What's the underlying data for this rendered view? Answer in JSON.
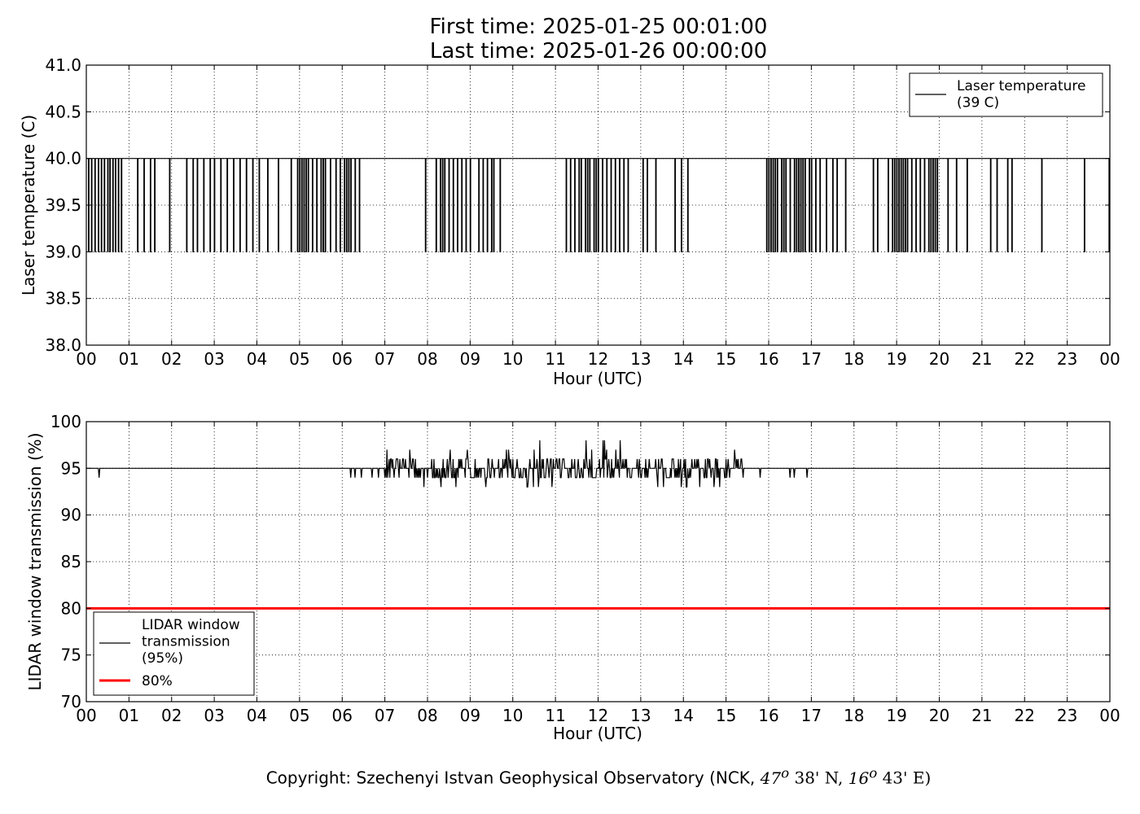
{
  "title": {
    "line1": "First time: 2025-01-25 00:01:00",
    "line2": "Last time: 2025-01-26 00:00:00"
  },
  "copyright": {
    "prefix": "Copyright: Szechenyi Istvan Geophysical Observatory (NCK,",
    "lat_deg": "47",
    "lat_min": "38' N,",
    "lon_deg": "16",
    "lon_min": "43' E)",
    "degree_mark": "o"
  },
  "colors": {
    "laser_line": "#000000",
    "transmission_line": "#000000",
    "threshold_line": "#ff0000",
    "grid": "#000000"
  },
  "chart_data": [
    {
      "type": "line",
      "ylabel": "Laser temperature (C)",
      "xlabel": "Hour (UTC)",
      "x_tick_labels": [
        "00",
        "01",
        "02",
        "03",
        "04",
        "05",
        "06",
        "07",
        "08",
        "09",
        "10",
        "11",
        "12",
        "13",
        "14",
        "15",
        "16",
        "17",
        "18",
        "19",
        "20",
        "21",
        "22",
        "23",
        "00"
      ],
      "xlim_hours": [
        0,
        24
      ],
      "ylim": [
        38.0,
        41.0
      ],
      "y_ticks": [
        "38.0",
        "38.5",
        "39.0",
        "39.5",
        "40.0",
        "40.5",
        "41.0"
      ],
      "grid": true,
      "legend_position": "top-right",
      "series": [
        {
          "name": "Laser temperature\n(39 C)",
          "baseline": 40.0,
          "drop_value": 39.0,
          "drops_at_hours": [
            0.05,
            0.12,
            0.2,
            0.28,
            0.35,
            0.42,
            0.5,
            0.55,
            0.62,
            0.68,
            0.75,
            0.82,
            1.2,
            1.35,
            1.5,
            1.6,
            1.95,
            2.35,
            2.5,
            2.6,
            2.75,
            2.9,
            3.0,
            3.15,
            3.3,
            3.45,
            3.6,
            3.75,
            3.9,
            4.05,
            4.25,
            4.5,
            4.8,
            4.95,
            5.0,
            5.05,
            5.1,
            5.15,
            5.2,
            5.3,
            5.4,
            5.5,
            5.55,
            5.6,
            5.72,
            5.85,
            5.95,
            6.05,
            6.1,
            6.15,
            6.2,
            6.3,
            6.4,
            7.95,
            8.2,
            8.3,
            8.35,
            8.4,
            8.5,
            8.6,
            8.7,
            8.8,
            8.9,
            9.0,
            9.2,
            9.3,
            9.4,
            9.5,
            9.55,
            9.7,
            11.25,
            11.35,
            11.45,
            11.55,
            11.6,
            11.7,
            11.75,
            11.8,
            11.9,
            11.95,
            12.0,
            12.1,
            12.2,
            12.3,
            12.4,
            12.5,
            12.6,
            12.7,
            13.05,
            13.15,
            13.35,
            13.8,
            13.95,
            14.1,
            15.95,
            16.0,
            16.05,
            16.1,
            16.15,
            16.2,
            16.3,
            16.35,
            16.4,
            16.5,
            16.6,
            16.65,
            16.7,
            16.75,
            16.8,
            16.85,
            16.95,
            17.0,
            17.1,
            17.2,
            17.35,
            17.5,
            17.6,
            17.8,
            18.45,
            18.55,
            18.8,
            18.9,
            18.95,
            19.0,
            19.05,
            19.1,
            19.15,
            19.2,
            19.25,
            19.35,
            19.45,
            19.55,
            19.65,
            19.75,
            19.8,
            19.85,
            19.9,
            19.95,
            20.2,
            20.4,
            20.65,
            21.2,
            21.35,
            21.6,
            21.7,
            22.4,
            23.4,
            23.98
          ]
        }
      ]
    },
    {
      "type": "line",
      "ylabel": "LIDAR window transmission (%)",
      "xlabel": "Hour (UTC)",
      "x_tick_labels": [
        "00",
        "01",
        "02",
        "03",
        "04",
        "05",
        "06",
        "07",
        "08",
        "09",
        "10",
        "11",
        "12",
        "13",
        "14",
        "15",
        "16",
        "17",
        "18",
        "19",
        "20",
        "21",
        "22",
        "23",
        "00"
      ],
      "xlim_hours": [
        0,
        24
      ],
      "ylim": [
        70,
        100
      ],
      "y_ticks": [
        "70",
        "75",
        "80",
        "85",
        "90",
        "95",
        "100"
      ],
      "grid": true,
      "legend_position": "bottom-left",
      "series": [
        {
          "name": "LIDAR window\ntransmission\n(95%)",
          "baseline": 95,
          "noisy_interval_hours": [
            7.0,
            15.4
          ],
          "noise_min": 93,
          "noise_max": 98,
          "sparse_dips": [
            {
              "x": 0.3,
              "y": 94
            },
            {
              "x": 6.2,
              "y": 94
            },
            {
              "x": 6.3,
              "y": 94
            },
            {
              "x": 6.45,
              "y": 94
            },
            {
              "x": 6.7,
              "y": 94
            },
            {
              "x": 6.85,
              "y": 94
            },
            {
              "x": 15.8,
              "y": 94
            },
            {
              "x": 16.5,
              "y": 94
            },
            {
              "x": 16.6,
              "y": 94
            },
            {
              "x": 16.9,
              "y": 94
            }
          ]
        },
        {
          "name": "80%",
          "constant": 80
        }
      ]
    }
  ]
}
